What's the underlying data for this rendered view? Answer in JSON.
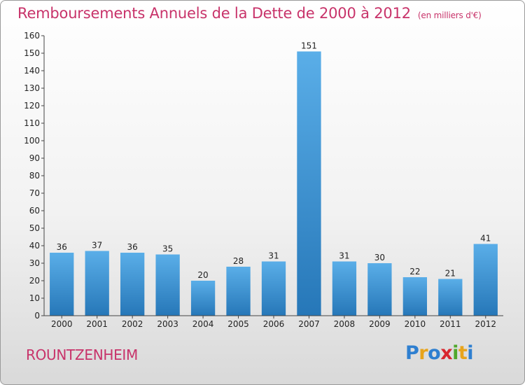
{
  "title": "Remboursements Annuels de la Dette de 2000 à 2012",
  "unit": "(en milliers d'€)",
  "town": "ROUNTZENHEIM",
  "logo": {
    "letters": [
      "P",
      "r",
      "o",
      "x",
      "i",
      "t",
      "i"
    ],
    "colors": [
      "#2e7fd0",
      "#e8a41b",
      "#2e7fd0",
      "#d8262d",
      "#4fa82c",
      "#e8a41b",
      "#2e7fd0"
    ]
  },
  "colors": {
    "bar": "#3d92d6",
    "bar_light": "#5aaee8",
    "bar_dark": "#2677b8",
    "text": "#c8336a"
  },
  "chart_data": {
    "type": "bar",
    "categories": [
      "2000",
      "2001",
      "2002",
      "2003",
      "2004",
      "2005",
      "2006",
      "2007",
      "2008",
      "2009",
      "2010",
      "2011",
      "2012"
    ],
    "values": [
      36,
      37,
      36,
      35,
      20,
      28,
      31,
      151,
      31,
      30,
      22,
      21,
      41
    ],
    "ylim": [
      0,
      160
    ],
    "yticks": [
      0,
      10,
      20,
      30,
      40,
      50,
      60,
      70,
      80,
      90,
      100,
      110,
      120,
      130,
      140,
      150,
      160
    ],
    "grid": false
  }
}
